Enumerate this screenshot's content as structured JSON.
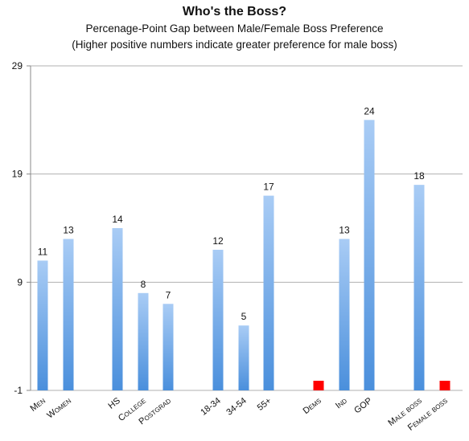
{
  "chart_data": {
    "type": "bar",
    "title": "Who's the Boss?",
    "subtitle": "Percenage-Point Gap between Male/Female Boss Preference",
    "note": "(Higher positive numbers indicate greater preference for male boss)",
    "ylim": [
      -1,
      29
    ],
    "yticks": [
      "-1",
      "9",
      "19",
      "29"
    ],
    "grid": true,
    "bars": [
      {
        "label": "Men",
        "value": 11,
        "value_label": "11",
        "color": "blue"
      },
      {
        "label": "Women",
        "value": 13,
        "value_label": "13",
        "color": "blue"
      },
      {
        "label": "HS",
        "value": 14,
        "value_label": "14",
        "color": "blue"
      },
      {
        "label": "College",
        "value": 8,
        "value_label": "8",
        "color": "blue"
      },
      {
        "label": "Postgrad",
        "value": 7,
        "value_label": "7",
        "color": "blue"
      },
      {
        "label": "18-34",
        "value": 12,
        "value_label": "12",
        "color": "blue"
      },
      {
        "label": "34-54",
        "value": 5,
        "value_label": "5",
        "color": "blue"
      },
      {
        "label": "55+",
        "value": 17,
        "value_label": "17",
        "color": "blue"
      },
      {
        "label": "Dems",
        "value": -1,
        "value_label": "",
        "color": "red"
      },
      {
        "label": "Ind",
        "value": 13,
        "value_label": "13",
        "color": "blue"
      },
      {
        "label": "GOP",
        "value": 24,
        "value_label": "24",
        "color": "blue"
      },
      {
        "label": "Male boss",
        "value": 18,
        "value_label": "18",
        "color": "blue"
      },
      {
        "label": "Female boss",
        "value": -1,
        "value_label": "",
        "color": "red"
      }
    ],
    "colors": {
      "bar_top": "#a9ccf5",
      "bar_bottom": "#4a8fdc",
      "negative": "#ff0000",
      "grid": "#b0b0b0",
      "axis": "#888888"
    }
  }
}
